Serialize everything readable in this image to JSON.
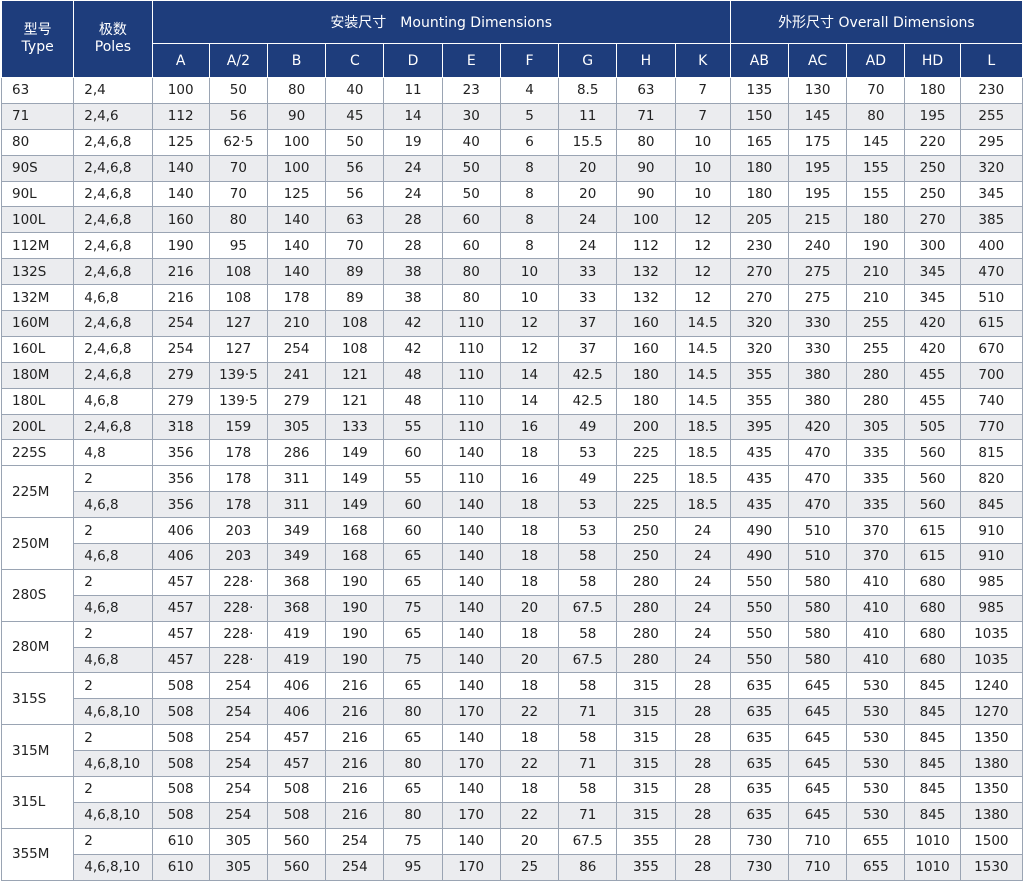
{
  "header": {
    "type_cn": "型号",
    "type_en": "Type",
    "poles_cn": "极数",
    "poles_en": "Poles",
    "mounting": "安装尺寸　Mounting Dimensions",
    "overall": "外形尺寸 Overall Dimensions",
    "columns": [
      "A",
      "A/2",
      "B",
      "C",
      "D",
      "E",
      "F",
      "G",
      "H",
      "K",
      "AB",
      "AC",
      "AD",
      "HD",
      "L"
    ]
  },
  "rows": [
    {
      "type": "63",
      "rows": [
        [
          "2,4",
          "100",
          "50",
          "80",
          "40",
          "11",
          "23",
          "4",
          "8.5",
          "63",
          "7",
          "135",
          "130",
          "70",
          "180",
          "230"
        ]
      ]
    },
    {
      "type": "71",
      "rows": [
        [
          "2,4,6",
          "112",
          "56",
          "90",
          "45",
          "14",
          "30",
          "5",
          "11",
          "71",
          "7",
          "150",
          "145",
          "80",
          "195",
          "255"
        ]
      ]
    },
    {
      "type": "80",
      "rows": [
        [
          "2,4,6,8",
          "125",
          "62·5",
          "100",
          "50",
          "19",
          "40",
          "6",
          "15.5",
          "80",
          "10",
          "165",
          "175",
          "145",
          "220",
          "295"
        ]
      ]
    },
    {
      "type": "90S",
      "rows": [
        [
          "2,4,6,8",
          "140",
          "70",
          "100",
          "56",
          "24",
          "50",
          "8",
          "20",
          "90",
          "10",
          "180",
          "195",
          "155",
          "250",
          "320"
        ]
      ]
    },
    {
      "type": "90L",
      "rows": [
        [
          "2,4,6,8",
          "140",
          "70",
          "125",
          "56",
          "24",
          "50",
          "8",
          "20",
          "90",
          "10",
          "180",
          "195",
          "155",
          "250",
          "345"
        ]
      ]
    },
    {
      "type": "100L",
      "rows": [
        [
          "2,4,6,8",
          "160",
          "80",
          "140",
          "63",
          "28",
          "60",
          "8",
          "24",
          "100",
          "12",
          "205",
          "215",
          "180",
          "270",
          "385"
        ]
      ]
    },
    {
      "type": "112M",
      "rows": [
        [
          "2,4,6,8",
          "190",
          "95",
          "140",
          "70",
          "28",
          "60",
          "8",
          "24",
          "112",
          "12",
          "230",
          "240",
          "190",
          "300",
          "400"
        ]
      ]
    },
    {
      "type": "132S",
      "rows": [
        [
          "2,4,6,8",
          "216",
          "108",
          "140",
          "89",
          "38",
          "80",
          "10",
          "33",
          "132",
          "12",
          "270",
          "275",
          "210",
          "345",
          "470"
        ]
      ]
    },
    {
      "type": "132M",
      "rows": [
        [
          "4,6,8",
          "216",
          "108",
          "178",
          "89",
          "38",
          "80",
          "10",
          "33",
          "132",
          "12",
          "270",
          "275",
          "210",
          "345",
          "510"
        ]
      ]
    },
    {
      "type": "160M",
      "rows": [
        [
          "2,4,6,8",
          "254",
          "127",
          "210",
          "108",
          "42",
          "110",
          "12",
          "37",
          "160",
          "14.5",
          "320",
          "330",
          "255",
          "420",
          "615"
        ]
      ]
    },
    {
      "type": "160L",
      "rows": [
        [
          "2,4,6,8",
          "254",
          "127",
          "254",
          "108",
          "42",
          "110",
          "12",
          "37",
          "160",
          "14.5",
          "320",
          "330",
          "255",
          "420",
          "670"
        ]
      ]
    },
    {
      "type": "180M",
      "rows": [
        [
          "2,4,6,8",
          "279",
          "139·5",
          "241",
          "121",
          "48",
          "110",
          "14",
          "42.5",
          "180",
          "14.5",
          "355",
          "380",
          "280",
          "455",
          "700"
        ]
      ]
    },
    {
      "type": "180L",
      "rows": [
        [
          "4,6,8",
          "279",
          "139·5",
          "279",
          "121",
          "48",
          "110",
          "14",
          "42.5",
          "180",
          "14.5",
          "355",
          "380",
          "280",
          "455",
          "740"
        ]
      ]
    },
    {
      "type": "200L",
      "rows": [
        [
          "2,4,6,8",
          "318",
          "159",
          "305",
          "133",
          "55",
          "110",
          "16",
          "49",
          "200",
          "18.5",
          "395",
          "420",
          "305",
          "505",
          "770"
        ]
      ]
    },
    {
      "type": "225S",
      "rows": [
        [
          "4,8",
          "356",
          "178",
          "286",
          "149",
          "60",
          "140",
          "18",
          "53",
          "225",
          "18.5",
          "435",
          "470",
          "335",
          "560",
          "815"
        ]
      ]
    },
    {
      "type": "225M",
      "rows": [
        [
          "2",
          "356",
          "178",
          "311",
          "149",
          "55",
          "110",
          "16",
          "49",
          "225",
          "18.5",
          "435",
          "470",
          "335",
          "560",
          "820"
        ],
        [
          "4,6,8",
          "356",
          "178",
          "311",
          "149",
          "60",
          "140",
          "18",
          "53",
          "225",
          "18.5",
          "435",
          "470",
          "335",
          "560",
          "845"
        ]
      ]
    },
    {
      "type": "250M",
      "rows": [
        [
          "2",
          "406",
          "203",
          "349",
          "168",
          "60",
          "140",
          "18",
          "53",
          "250",
          "24",
          "490",
          "510",
          "370",
          "615",
          "910"
        ],
        [
          "4,6,8",
          "406",
          "203",
          "349",
          "168",
          "65",
          "140",
          "18",
          "58",
          "250",
          "24",
          "490",
          "510",
          "370",
          "615",
          "910"
        ]
      ]
    },
    {
      "type": "280S",
      "rows": [
        [
          "2",
          "457",
          "228·",
          "368",
          "190",
          "65",
          "140",
          "18",
          "58",
          "280",
          "24",
          "550",
          "580",
          "410",
          "680",
          "985"
        ],
        [
          "4,6,8",
          "457",
          "228·",
          "368",
          "190",
          "75",
          "140",
          "20",
          "67.5",
          "280",
          "24",
          "550",
          "580",
          "410",
          "680",
          "985"
        ]
      ]
    },
    {
      "type": "280M",
      "rows": [
        [
          "2",
          "457",
          "228·",
          "419",
          "190",
          "65",
          "140",
          "18",
          "58",
          "280",
          "24",
          "550",
          "580",
          "410",
          "680",
          "1035"
        ],
        [
          "4,6,8",
          "457",
          "228·",
          "419",
          "190",
          "75",
          "140",
          "20",
          "67.5",
          "280",
          "24",
          "550",
          "580",
          "410",
          "680",
          "1035"
        ]
      ]
    },
    {
      "type": "315S",
      "rows": [
        [
          "2",
          "508",
          "254",
          "406",
          "216",
          "65",
          "140",
          "18",
          "58",
          "315",
          "28",
          "635",
          "645",
          "530",
          "845",
          "1240"
        ],
        [
          "4,6,8,10",
          "508",
          "254",
          "406",
          "216",
          "80",
          "170",
          "22",
          "71",
          "315",
          "28",
          "635",
          "645",
          "530",
          "845",
          "1270"
        ]
      ]
    },
    {
      "type": "315M",
      "rows": [
        [
          "2",
          "508",
          "254",
          "457",
          "216",
          "65",
          "140",
          "18",
          "58",
          "315",
          "28",
          "635",
          "645",
          "530",
          "845",
          "1350"
        ],
        [
          "4,6,8,10",
          "508",
          "254",
          "457",
          "216",
          "80",
          "170",
          "22",
          "71",
          "315",
          "28",
          "635",
          "645",
          "530",
          "845",
          "1380"
        ]
      ]
    },
    {
      "type": "315L",
      "rows": [
        [
          "2",
          "508",
          "254",
          "508",
          "216",
          "65",
          "140",
          "18",
          "58",
          "315",
          "28",
          "635",
          "645",
          "530",
          "845",
          "1350"
        ],
        [
          "4,6,8,10",
          "508",
          "254",
          "508",
          "216",
          "80",
          "170",
          "22",
          "71",
          "315",
          "28",
          "635",
          "645",
          "530",
          "845",
          "1380"
        ]
      ]
    },
    {
      "type": "355M",
      "rows": [
        [
          "2",
          "610",
          "305",
          "560",
          "254",
          "75",
          "140",
          "20",
          "67.5",
          "355",
          "28",
          "730",
          "710",
          "655",
          "1010",
          "1500"
        ],
        [
          "4,6,8,10",
          "610",
          "305",
          "560",
          "254",
          "95",
          "170",
          "25",
          "86",
          "355",
          "28",
          "730",
          "710",
          "655",
          "1010",
          "1530"
        ]
      ]
    }
  ]
}
